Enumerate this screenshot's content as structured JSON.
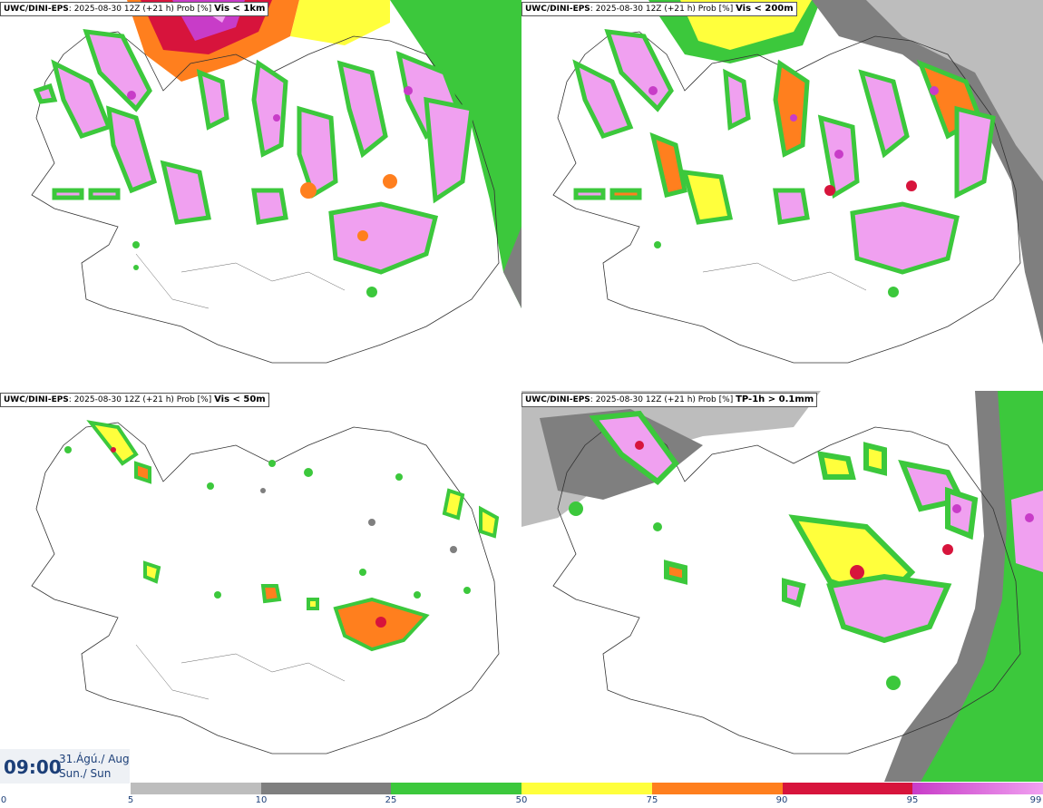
{
  "panels": [
    {
      "model": "UWC/DINI-EPS",
      "run": ": 2025-08-30 12Z (+21 h) Prob [%]",
      "criterion": "Vis < 1km"
    },
    {
      "model": "UWC/DINI-EPS",
      "run": ": 2025-08-30 12Z (+21 h) Prob [%]",
      "criterion": "Vis < 200m"
    },
    {
      "model": "UWC/DINI-EPS",
      "run": ": 2025-08-30 12Z (+21 h) Prob [%]",
      "criterion": "Vis < 50m"
    },
    {
      "model": "UWC/DINI-EPS",
      "run": ": 2025-08-30 12Z (+21 h) Prob [%]",
      "criterion": "TP-1h > 0.1mm"
    }
  ],
  "valid_time": {
    "time": "09:00",
    "date_line1": "31.Ágú./ Aug",
    "date_line2": "Sun./ Sun"
  },
  "legend": {
    "ticks": [
      "0",
      "5",
      "10",
      "25",
      "50",
      "75",
      "90",
      "95",
      "99"
    ],
    "colors": [
      "#ffffff",
      "#bdbdbd",
      "#7f7f7f",
      "#3cc83c",
      "#ffff3c",
      "#ff7f1e",
      "#d7143c",
      "#c83cc8",
      "#f0a0f0"
    ]
  }
}
